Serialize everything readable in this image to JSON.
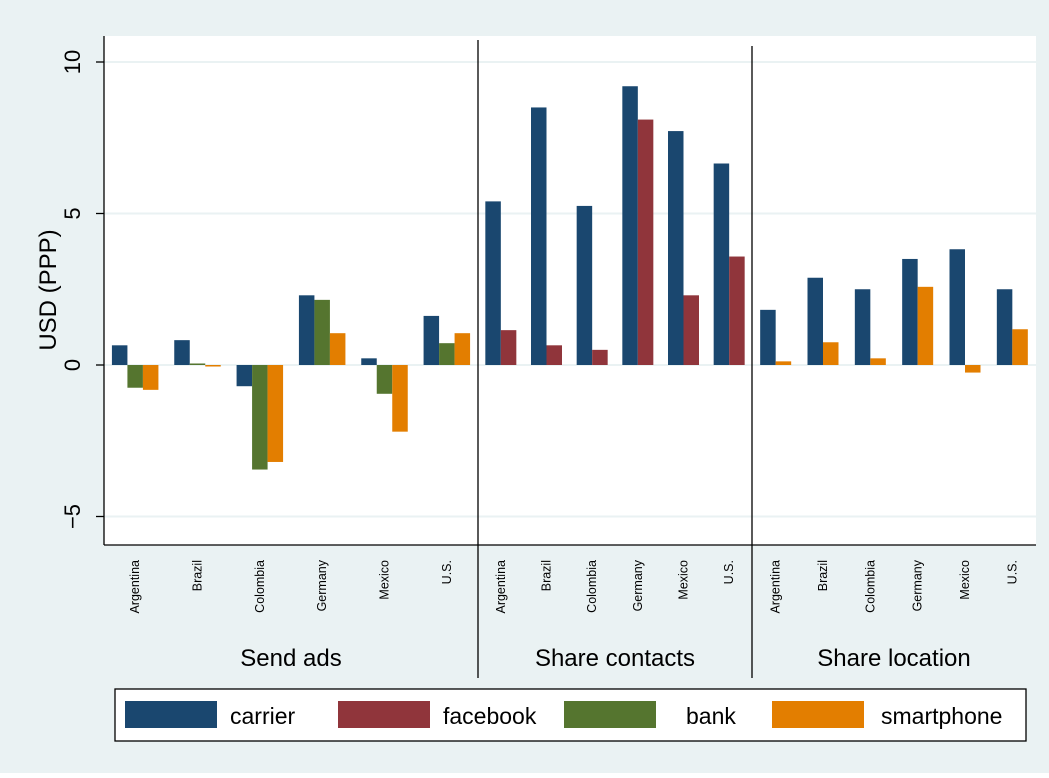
{
  "chart_data": {
    "type": "bar",
    "ylabel": "USD (PPP)",
    "ylim": [
      -6,
      10.8
    ],
    "yticks": [
      -5,
      0,
      5,
      10
    ],
    "ytick_labels": [
      "−5",
      "0",
      "5",
      "10"
    ],
    "grid": true,
    "legend_position": "bottom",
    "categories": [
      "Argentina",
      "Brazil",
      "Colombia",
      "Germany",
      "Mexico",
      "U.S."
    ],
    "panels": [
      {
        "title": "Send ads",
        "series": [
          {
            "name": "carrier",
            "values": [
              0.65,
              0.82,
              -0.7,
              2.3,
              0.22,
              1.62
            ]
          },
          {
            "name": "bank",
            "values": [
              -0.75,
              0.05,
              -3.45,
              2.15,
              -0.95,
              0.72
            ]
          },
          {
            "name": "smartphone",
            "values": [
              -0.82,
              -0.05,
              -3.2,
              1.05,
              -2.2,
              1.05
            ]
          }
        ]
      },
      {
        "title": "Share contacts",
        "series": [
          {
            "name": "carrier",
            "values": [
              5.4,
              8.5,
              5.25,
              9.2,
              7.72,
              6.65
            ]
          },
          {
            "name": "facebook",
            "values": [
              1.15,
              0.65,
              0.5,
              8.1,
              2.3,
              3.58
            ]
          }
        ]
      },
      {
        "title": "Share location",
        "series": [
          {
            "name": "carrier",
            "values": [
              1.82,
              2.88,
              2.5,
              3.5,
              3.82,
              2.5
            ]
          },
          {
            "name": "smartphone",
            "values": [
              0.12,
              0.75,
              0.22,
              2.58,
              -0.25,
              1.18
            ]
          }
        ]
      }
    ],
    "legend": [
      "carrier",
      "facebook",
      "bank",
      "smartphone"
    ],
    "colors": {
      "carrier": "#1a476f",
      "facebook": "#90353b",
      "bank": "#55752f",
      "smartphone": "#e37e00",
      "background": "#eaf2f3",
      "plot": "#ffffff",
      "grid": "#eaf2f3"
    }
  }
}
